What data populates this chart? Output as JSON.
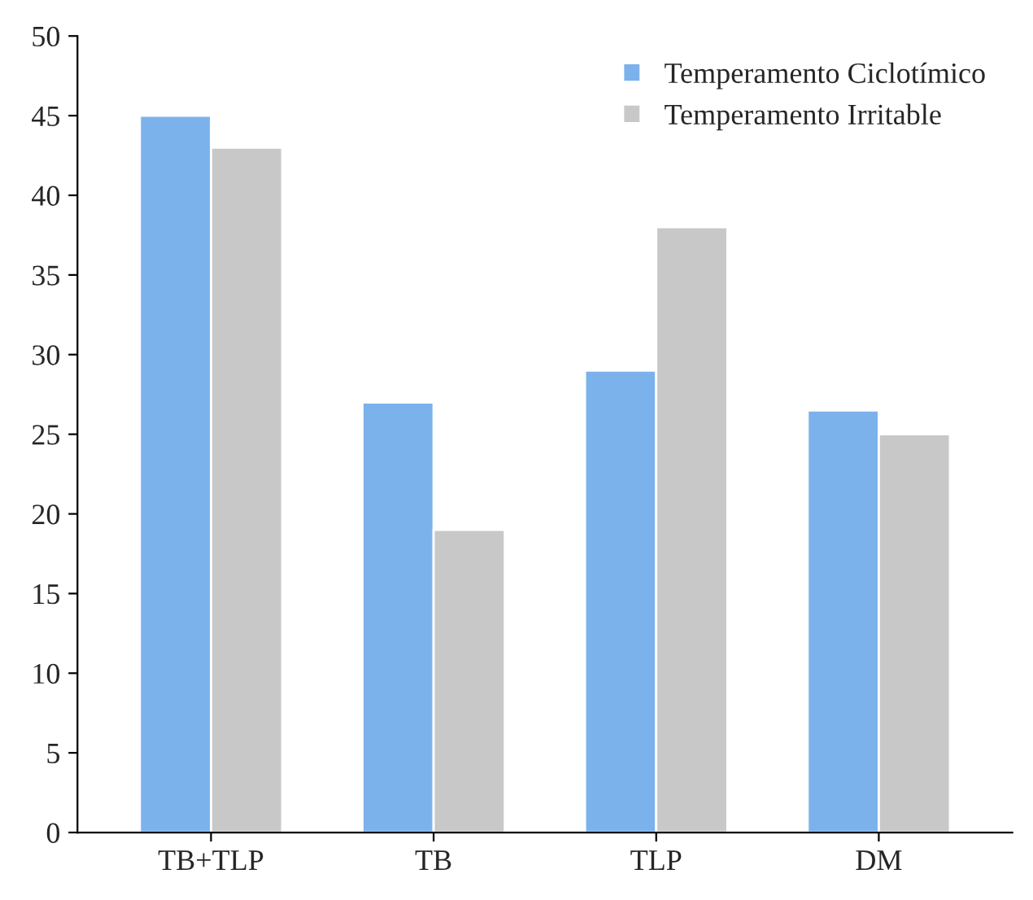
{
  "chart_data": {
    "type": "bar",
    "categories": [
      "TB+TLP",
      "TB",
      "TLP",
      "DM"
    ],
    "series": [
      {
        "name": "Temperamento Ciclotímico",
        "color": "#7cb2ec",
        "values": [
          45,
          27,
          29,
          26.5
        ]
      },
      {
        "name": "Temperamento Irritable",
        "color": "#c8c8c8",
        "values": [
          43,
          19,
          38,
          25
        ]
      }
    ],
    "ylim": [
      0,
      50
    ],
    "yticks": [
      0,
      5,
      10,
      15,
      20,
      25,
      30,
      35,
      40,
      45,
      50
    ],
    "grid": false,
    "legend": "top right"
  }
}
